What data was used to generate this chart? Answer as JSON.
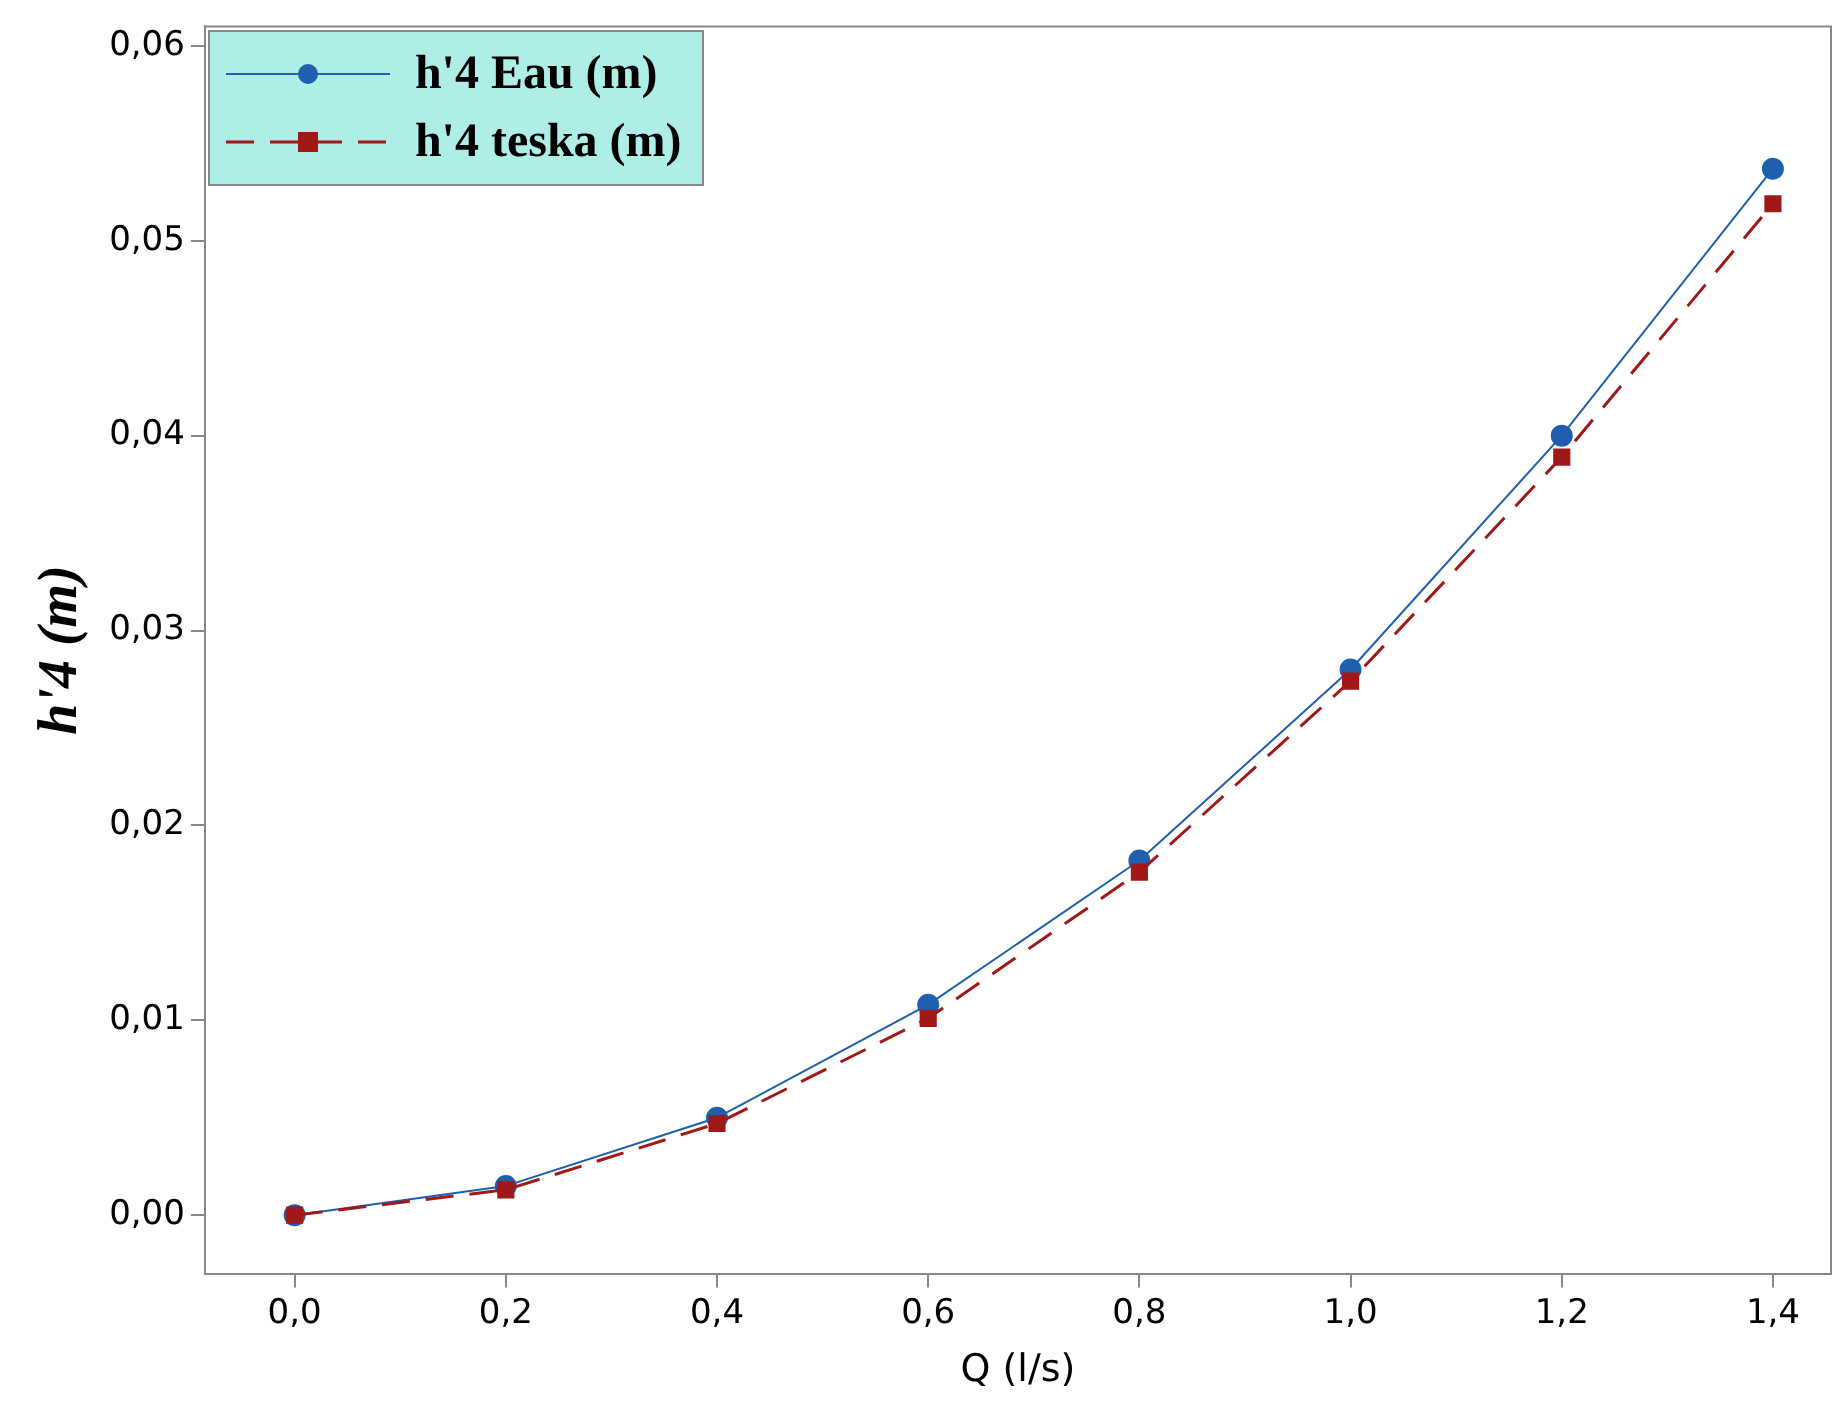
{
  "chart_data": {
    "type": "line",
    "xlabel": "Q (l/s)",
    "ylabel": "h'4 (m)",
    "x": [
      0,
      0.2,
      0.4,
      0.6,
      0.8,
      1.0,
      1.2,
      1.4
    ],
    "series": [
      {
        "name": "h'4  Eau (m)",
        "color": "#1f5fb0",
        "values": [
          0,
          0.0015,
          0.005,
          0.0108,
          0.0182,
          0.028,
          0.04,
          0.0537
        ],
        "marker": "circle",
        "line_style": "solid"
      },
      {
        "name": "h'4 teska (m)",
        "color": "#a01818",
        "values": [
          0,
          0.0013,
          0.0047,
          0.0101,
          0.0176,
          0.0274,
          0.0389,
          0.0519
        ],
        "marker": "square",
        "line_style": "dashed"
      }
    ],
    "xlim": [
      -0.085,
      1.455
    ],
    "ylim": [
      -0.003,
      0.061
    ],
    "xticks": [
      {
        "value": 0,
        "label": "0,0"
      },
      {
        "value": 0.2,
        "label": "0,2"
      },
      {
        "value": 0.4,
        "label": "0,4"
      },
      {
        "value": 0.6,
        "label": "0,6"
      },
      {
        "value": 0.8,
        "label": "0,8"
      },
      {
        "value": 1.0,
        "label": "1,0"
      },
      {
        "value": 1.2,
        "label": "1,2"
      },
      {
        "value": 1.4,
        "label": "1,4"
      }
    ],
    "yticks": [
      {
        "value": 0,
        "label": "0,00"
      },
      {
        "value": 0.01,
        "label": "0,01"
      },
      {
        "value": 0.02,
        "label": "0,02"
      },
      {
        "value": 0.03,
        "label": "0,03"
      },
      {
        "value": 0.04,
        "label": "0,04"
      },
      {
        "value": 0.05,
        "label": "0,05"
      },
      {
        "value": 0.06,
        "label": "0,06"
      }
    ],
    "grid": false,
    "legend": "top left"
  }
}
